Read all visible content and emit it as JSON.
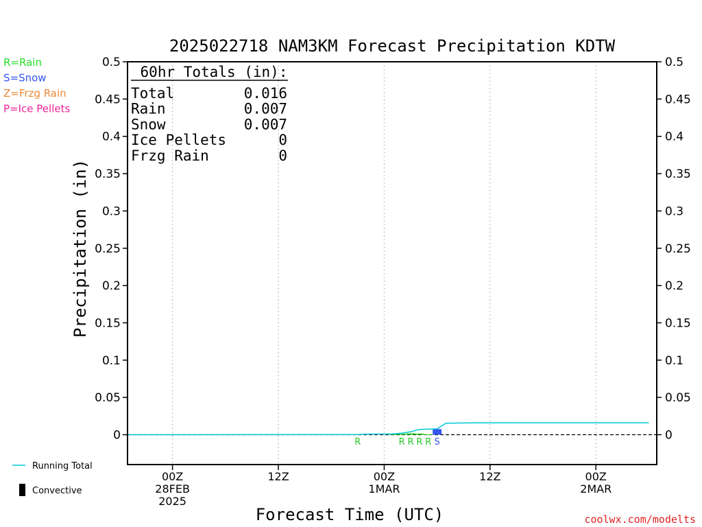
{
  "chart_data": {
    "type": "area",
    "title": "2025022718 NAM3KM Forecast Precipitation KDTW",
    "ylabel": "Precipitation (in)",
    "xlabel": "Forecast Time (UTC)",
    "ylim": [
      -0.04,
      0.5
    ],
    "yticks": [
      "0",
      "0.05",
      "0.1",
      "0.15",
      "0.2",
      "0.25",
      "0.3",
      "0.35",
      "0.4",
      "0.45",
      "0.5"
    ],
    "xticks": [
      {
        "hour": 6,
        "lines": [
          "00Z",
          "28FEB",
          "2025"
        ]
      },
      {
        "hour": 18,
        "lines": [
          "12Z"
        ]
      },
      {
        "hour": 30,
        "lines": [
          "00Z",
          "1MAR"
        ]
      },
      {
        "hour": 42,
        "lines": [
          "12Z"
        ]
      },
      {
        "hour": 54,
        "lines": [
          "00Z",
          "2MAR"
        ]
      }
    ],
    "xlim": [
      0.9,
      60.9
    ],
    "grid": "vertical dotted",
    "legend_left": [
      {
        "label": "R=Rain",
        "color": "#22dd22"
      },
      {
        "label": "S=Snow",
        "color": "#3355ee"
      },
      {
        "label": "Z=Frzg Rain",
        "color": "#ee8833"
      },
      {
        "label": "P=Ice Pellets",
        "color": "#ee2299"
      }
    ],
    "legend_bottom": [
      {
        "label": "Running Total",
        "kind": "line",
        "color": "#00c8d8"
      },
      {
        "label": "Convective",
        "kind": "bar",
        "color": "#000000"
      }
    ],
    "totals": {
      "header": "60hr Totals (in):",
      "rows": [
        {
          "label": "Total",
          "value": "0.016"
        },
        {
          "label": "Rain",
          "value": "0.007"
        },
        {
          "label": "Snow",
          "value": "0.007"
        },
        {
          "label": "Ice Pellets",
          "value": "0"
        },
        {
          "label": "Frzg Rain",
          "value": "0"
        }
      ]
    },
    "running_total": {
      "name": "Running Total",
      "hours": [
        1,
        27,
        28,
        30,
        31,
        32,
        33,
        34,
        35,
        36,
        37,
        40,
        45,
        60
      ],
      "values": [
        0,
        0.0003,
        0.0008,
        0.0009,
        0.001,
        0.002,
        0.004,
        0.007,
        0.0075,
        0.0078,
        0.0155,
        0.0158,
        0.016,
        0.016
      ]
    },
    "hourly_precip": {
      "hours": [
        31,
        32,
        33,
        34,
        35,
        36
      ],
      "values": [
        0.0008,
        0.0012,
        0.0018,
        0.0015,
        0.0005,
        0.0075
      ],
      "types": [
        "R",
        "R",
        "R",
        "R",
        "R",
        "S"
      ]
    },
    "type_markers": [
      {
        "hour": 27,
        "label": "R"
      },
      {
        "hour": 32,
        "label": "R"
      },
      {
        "hour": 33,
        "label": "R"
      },
      {
        "hour": 34,
        "label": "R"
      },
      {
        "hour": 35,
        "label": "R"
      },
      {
        "hour": 36,
        "label": "S"
      }
    ],
    "credit": "coolwx.com/modelts"
  }
}
